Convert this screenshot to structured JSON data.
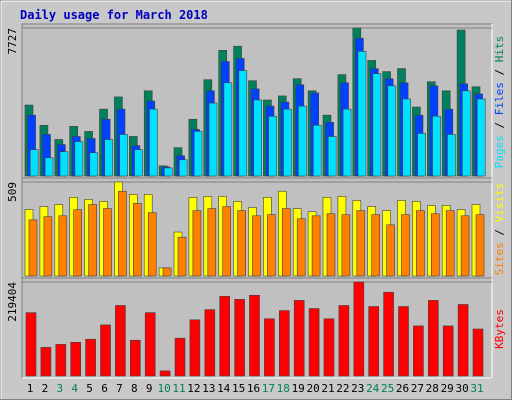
{
  "chart_data": [
    {
      "type": "bar",
      "title": "Daily usage for March 2018",
      "legend_separator": " / ",
      "ylim": [
        0,
        7727
      ],
      "yticks": [
        7727
      ],
      "series": [
        {
          "name": "Pages",
          "color": "#00e0ff",
          "values": [
            1375,
            952,
            1270,
            1799,
            1217,
            1904,
            2169,
            1375,
            3491,
            423,
            846,
            2328,
            3809,
            4867,
            5502,
            3968,
            3121,
            3491,
            3650,
            2645,
            2063,
            3491,
            6507,
            5343,
            4708,
            4020,
            2222,
            3121,
            2169,
            4444,
            4020
          ]
        },
        {
          "name": "Files",
          "color": "#0040ff",
          "values": [
            3174,
            2169,
            1640,
            2063,
            1957,
            2962,
            3491,
            1587,
            3915,
            476,
            1058,
            2433,
            4444,
            5978,
            6136,
            4549,
            3650,
            3862,
            4761,
            4338,
            2804,
            4867,
            7194,
            5607,
            5078,
            4867,
            3174,
            4708,
            3491,
            4814,
            4285
          ]
        },
        {
          "name": "Hits",
          "color": "#00805c",
          "values": [
            3704,
            2646,
            1905,
            2593,
            2328,
            3493,
            4128,
            2064,
            4446,
            529,
            1482,
            2964,
            5028,
            6563,
            6775,
            4975,
            3969,
            4181,
            5081,
            4446,
            3176,
            5293,
            7727,
            6034,
            5451,
            5610,
            3599,
            4922,
            4446,
            7621,
            4658
          ]
        }
      ]
    },
    {
      "type": "bar",
      "legend_separator": " / ",
      "ylim": [
        0,
        509
      ],
      "yticks": [
        509
      ],
      "series": [
        {
          "name": "Sites",
          "color": "#ff8000",
          "values": [
            304,
            321,
            326,
            359,
            387,
            365,
            459,
            393,
            343,
            44,
            210,
            354,
            365,
            376,
            354,
            326,
            332,
            365,
            310,
            326,
            337,
            332,
            354,
            332,
            277,
            332,
            354,
            337,
            354,
            326,
            332
          ]
        },
        {
          "name": "Visits",
          "color": "#ffff00",
          "values": [
            360,
            376,
            387,
            426,
            415,
            404,
            509,
            442,
            442,
            44,
            238,
            426,
            431,
            431,
            404,
            371,
            426,
            459,
            365,
            348,
            426,
            431,
            409,
            376,
            354,
            409,
            404,
            382,
            382,
            360,
            387
          ]
        }
      ]
    },
    {
      "type": "bar",
      "ylim": [
        0,
        219404
      ],
      "yticks": [
        219404
      ],
      "series": [
        {
          "name": "KBytes",
          "color": "#ff0000",
          "values": [
            147870,
            66780,
            73935,
            78705,
            85860,
            119250,
            164565,
            83475,
            147870,
            11925,
            88245,
            131175,
            155025,
            186030,
            178875,
            188415,
            133560,
            152640,
            176490,
            157410,
            133560,
            164565,
            219404,
            162180,
            195570,
            162180,
            116865,
            176490,
            116865,
            166950,
            109710
          ]
        }
      ],
      "categories": [
        "1",
        "2",
        "3",
        "4",
        "5",
        "6",
        "7",
        "8",
        "9",
        "10",
        "11",
        "12",
        "13",
        "14",
        "15",
        "16",
        "17",
        "18",
        "19",
        "20",
        "21",
        "22",
        "23",
        "24",
        "25",
        "26",
        "27",
        "28",
        "29",
        "30",
        "31"
      ],
      "category_colors": [
        "#000000",
        "#000000",
        "#00805c",
        "#00805c",
        "#000000",
        "#000000",
        "#000000",
        "#000000",
        "#000000",
        "#00805c",
        "#00805c",
        "#000000",
        "#000000",
        "#000000",
        "#000000",
        "#000000",
        "#00805c",
        "#00805c",
        "#000000",
        "#000000",
        "#000000",
        "#000000",
        "#000000",
        "#00805c",
        "#00805c",
        "#000000",
        "#000000",
        "#000000",
        "#000000",
        "#000000",
        "#00805c"
      ]
    }
  ]
}
